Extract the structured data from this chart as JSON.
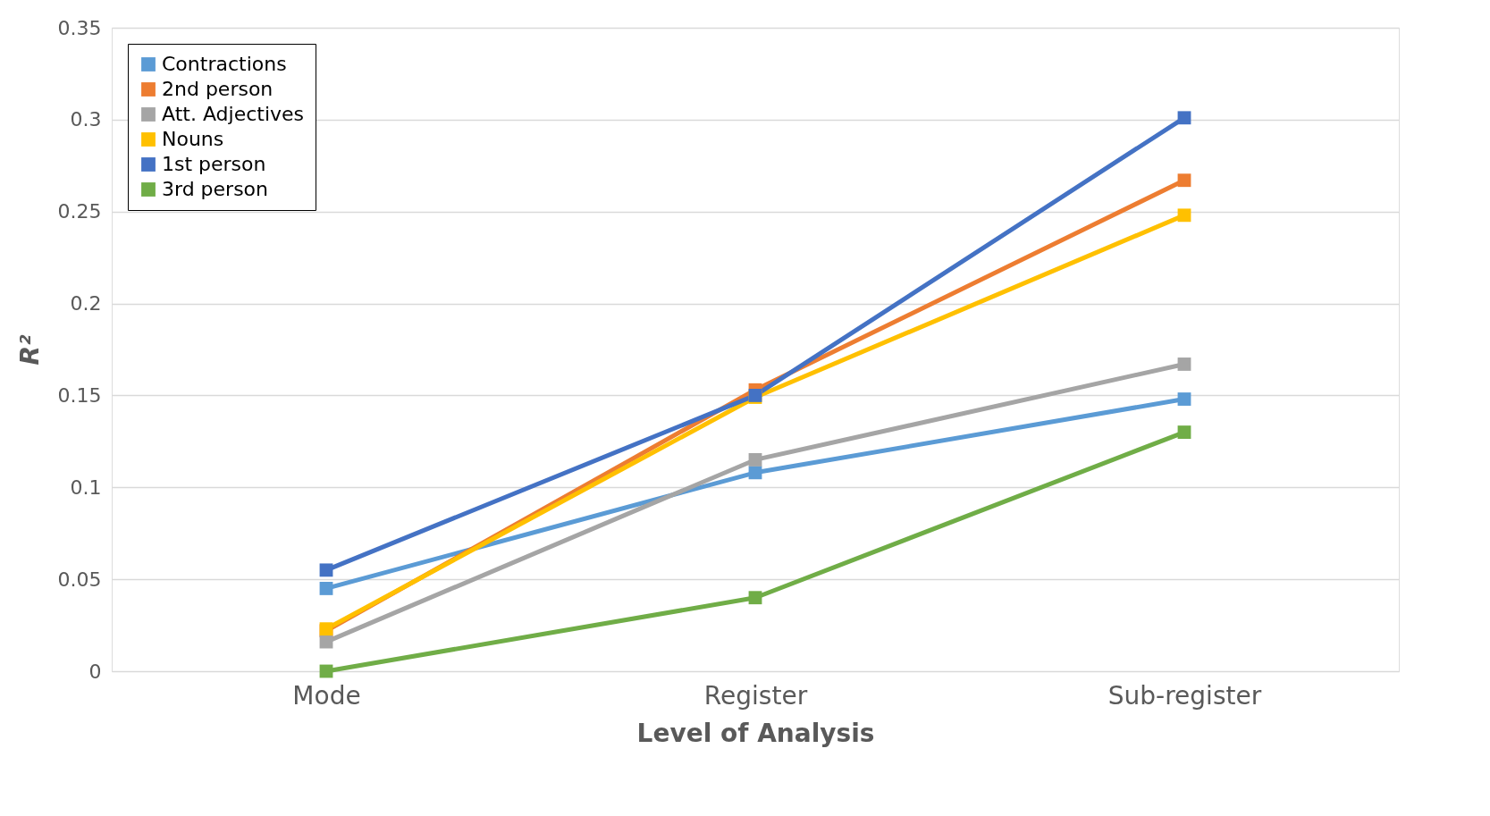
{
  "chart_data": {
    "type": "line",
    "xlabel": "Level of Analysis",
    "ylabel": "R²",
    "categories": [
      "Mode",
      "Register",
      "Sub-register"
    ],
    "series": [
      {
        "name": "Contractions",
        "color": "#5b9bd5",
        "values": [
          0.045,
          0.108,
          0.148
        ]
      },
      {
        "name": "2nd person",
        "color": "#ed7d31",
        "values": [
          0.022,
          0.153,
          0.267
        ]
      },
      {
        "name": "Att. Adjectives",
        "color": "#a5a5a5",
        "values": [
          0.016,
          0.115,
          0.167
        ]
      },
      {
        "name": "Nouns",
        "color": "#ffc000",
        "values": [
          0.023,
          0.149,
          0.248
        ]
      },
      {
        "name": "1st person",
        "color": "#4472c4",
        "values": [
          0.055,
          0.15,
          0.301
        ]
      },
      {
        "name": "3rd person",
        "color": "#70ad47",
        "values": [
          0.0,
          0.04,
          0.13
        ]
      }
    ],
    "ylim": [
      0,
      0.35
    ],
    "yticks": [
      0,
      0.05,
      0.1,
      0.15,
      0.2,
      0.25,
      0.3,
      0.35
    ],
    "grid": "y",
    "legend": "top left",
    "marker": "square",
    "line_style": "solid"
  }
}
